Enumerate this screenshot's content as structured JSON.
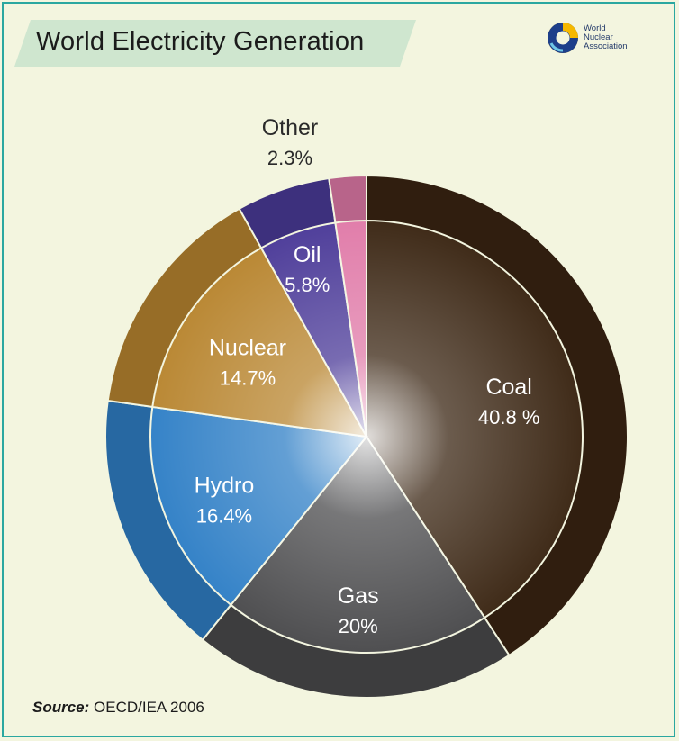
{
  "chart_data": {
    "type": "pie",
    "title": "World Electricity Generation",
    "categories": [
      "Coal",
      "Gas",
      "Hydro",
      "Nuclear",
      "Oil",
      "Other"
    ],
    "values": [
      40.8,
      20,
      16.4,
      14.7,
      5.8,
      2.3
    ],
    "value_labels": [
      "40.8 %",
      "20%",
      "16.4%",
      "14.7%",
      "5.8%",
      "2.3%"
    ],
    "colors": [
      "#3a2512",
      "#4a4a4c",
      "#2f7fc6",
      "#b8852f",
      "#4b3a98",
      "#e07aa8"
    ],
    "legend": "none"
  },
  "source": {
    "prefix": "Source:",
    "text": "OECD/IEA 2006"
  },
  "logo": {
    "icon": "world-nuclear-association-logo",
    "lines": [
      "World",
      "Nuclear",
      "Association"
    ]
  }
}
